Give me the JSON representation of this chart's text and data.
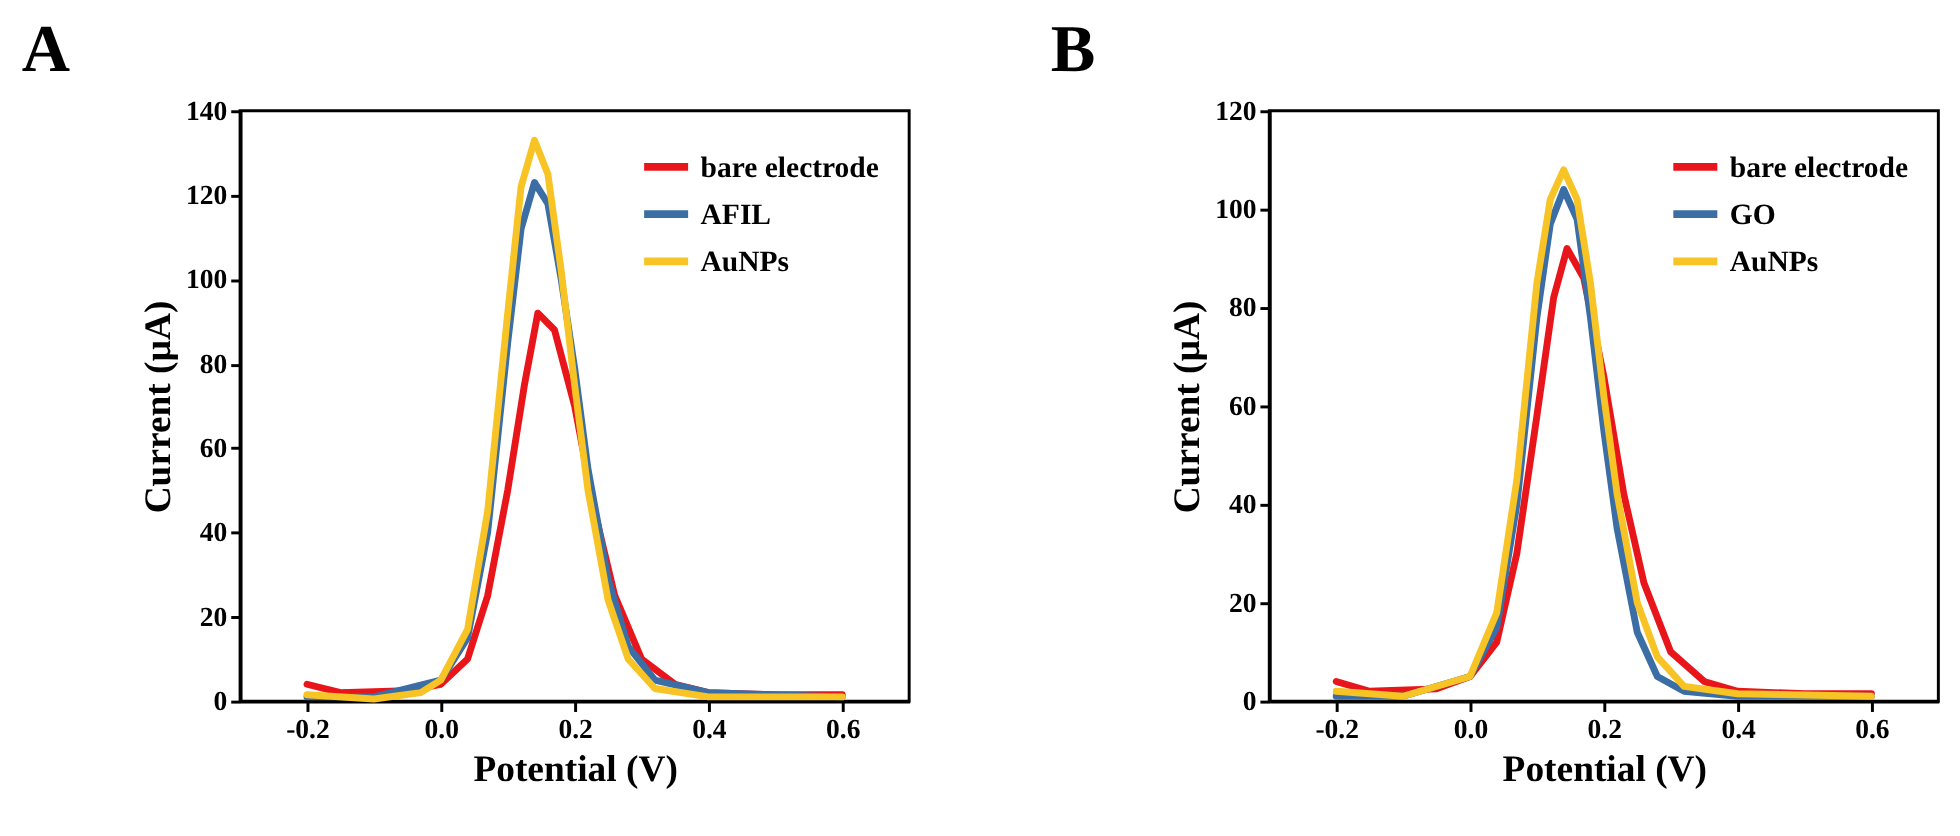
{
  "chart_data": [
    {
      "type": "line",
      "title": "A",
      "xlabel": "Potential (V)",
      "ylabel": "Current (µA)",
      "xlim": [
        -0.3,
        0.7
      ],
      "xticks": [
        {
          "value": -0.2,
          "label": "-0.2"
        },
        {
          "value": 0,
          "label": "0.0"
        },
        {
          "value": 0.2,
          "label": "0.2"
        },
        {
          "value": 0.4,
          "label": "0.4"
        },
        {
          "value": 0.6,
          "label": "0.6"
        }
      ],
      "ylim": [
        0,
        140
      ],
      "yticks": [
        0,
        20,
        40,
        60,
        80,
        100,
        120,
        140
      ],
      "legend": "top right",
      "grid": false,
      "series": [
        {
          "name": "bare electrode",
          "color": "#e8151b",
          "x": [
            -0.2,
            -0.15,
            -0.05,
            0,
            0.04,
            0.07,
            0.1,
            0.125,
            0.145,
            0.17,
            0.2,
            0.23,
            0.26,
            0.3,
            0.35,
            0.4,
            0.5,
            0.6
          ],
          "values": [
            4,
            2,
            2.5,
            4,
            10,
            25,
            50,
            75,
            92,
            88,
            70,
            45,
            25,
            10,
            4,
            2,
            1.5,
            1.5
          ]
        },
        {
          "name": "AFIL",
          "color": "#3a6ea5",
          "x": [
            -0.2,
            -0.1,
            0,
            0.04,
            0.07,
            0.1,
            0.12,
            0.14,
            0.16,
            0.18,
            0.2,
            0.22,
            0.25,
            0.28,
            0.32,
            0.4,
            0.6
          ],
          "values": [
            1,
            1,
            5,
            15,
            40,
            85,
            112,
            123,
            118,
            100,
            79,
            55,
            29,
            13,
            5,
            2,
            1
          ]
        },
        {
          "name": "AuNPs",
          "color": "#f7c325",
          "x": [
            -0.2,
            -0.1,
            -0.03,
            0,
            0.04,
            0.07,
            0.1,
            0.12,
            0.14,
            0.16,
            0.18,
            0.2,
            0.22,
            0.25,
            0.28,
            0.32,
            0.4,
            0.6
          ],
          "values": [
            1.5,
            0.5,
            2,
            5,
            17,
            45,
            92,
            122,
            133,
            125,
            102,
            75,
            50,
            24,
            10,
            3,
            1,
            1
          ]
        }
      ]
    },
    {
      "type": "line",
      "title": "B",
      "xlabel": "Potential (V)",
      "ylabel": "Current (µA)",
      "xlim": [
        -0.3,
        0.7
      ],
      "xticks": [
        {
          "value": -0.2,
          "label": "-0.2"
        },
        {
          "value": 0,
          "label": "0.0"
        },
        {
          "value": 0.2,
          "label": "0.2"
        },
        {
          "value": 0.4,
          "label": "0.4"
        },
        {
          "value": 0.6,
          "label": "0.6"
        }
      ],
      "ylim": [
        0,
        120
      ],
      "yticks": [
        0,
        20,
        40,
        60,
        80,
        100,
        120
      ],
      "legend": "top right",
      "grid": false,
      "series": [
        {
          "name": "bare electrode",
          "color": "#e8151b",
          "x": [
            -0.2,
            -0.15,
            -0.05,
            0,
            0.04,
            0.07,
            0.1,
            0.125,
            0.145,
            0.17,
            0.2,
            0.23,
            0.26,
            0.3,
            0.35,
            0.4,
            0.5,
            0.6
          ],
          "values": [
            4,
            2,
            2.5,
            5,
            12,
            30,
            58,
            82,
            92,
            86,
            66,
            42,
            24,
            10,
            4,
            2,
            1.5,
            1.5
          ]
        },
        {
          "name": "GO",
          "color": "#3a6ea5",
          "x": [
            -0.2,
            -0.1,
            0,
            0.04,
            0.07,
            0.1,
            0.12,
            0.14,
            0.16,
            0.18,
            0.2,
            0.22,
            0.25,
            0.28,
            0.32,
            0.4,
            0.6
          ],
          "values": [
            1,
            1,
            5,
            15,
            40,
            78,
            97,
            104,
            98,
            78,
            55,
            35,
            14,
            5,
            2,
            1,
            1
          ]
        },
        {
          "name": "AuNPs",
          "color": "#f7c325",
          "x": [
            -0.2,
            -0.1,
            0,
            0.04,
            0.07,
            0.1,
            0.12,
            0.14,
            0.16,
            0.18,
            0.2,
            0.22,
            0.25,
            0.28,
            0.32,
            0.4,
            0.6
          ],
          "values": [
            2,
            1,
            5,
            18,
            45,
            85,
            102,
            108,
            102,
            85,
            62,
            42,
            20,
            9,
            3,
            1.5,
            1
          ]
        }
      ]
    }
  ]
}
